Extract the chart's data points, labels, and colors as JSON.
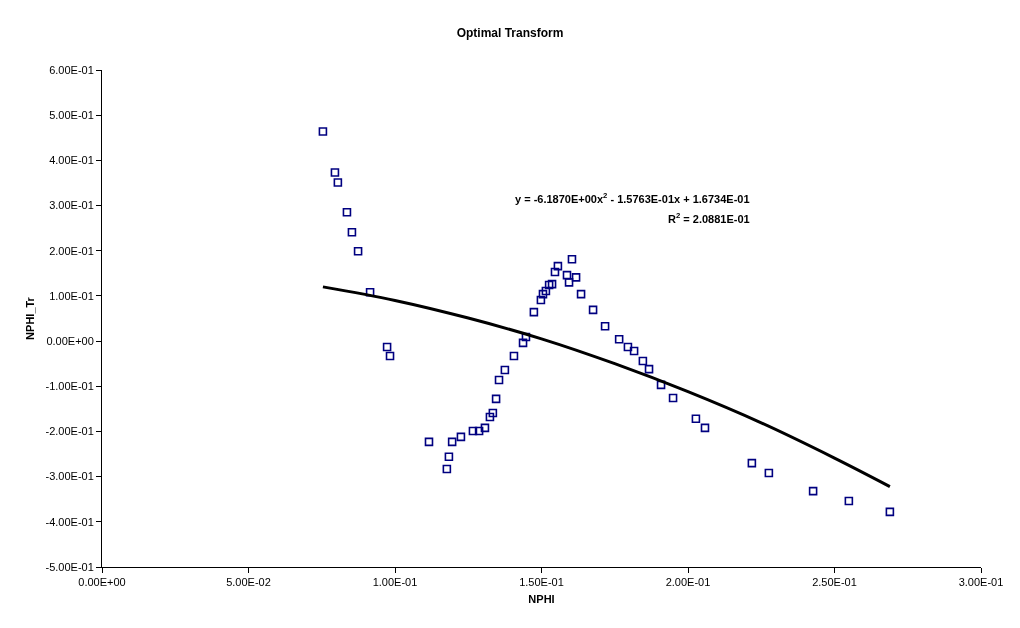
{
  "chart_data": {
    "type": "scatter",
    "title": "Optimal Transform",
    "xlabel": "NPHI",
    "ylabel": "NPHI_Tr",
    "xlim": [
      0,
      0.3
    ],
    "xticks": [
      {
        "value": 0,
        "label": "0.00E+00"
      },
      {
        "value": 0.05,
        "label": "5.00E-02"
      },
      {
        "value": 0.1,
        "label": "1.00E-01"
      },
      {
        "value": 0.15,
        "label": "1.50E-01"
      },
      {
        "value": 0.2,
        "label": "2.00E-01"
      },
      {
        "value": 0.25,
        "label": "2.50E-01"
      },
      {
        "value": 0.3,
        "label": "3.00E-01"
      }
    ],
    "ylim": [
      -0.5,
      0.6
    ],
    "yticks": [
      {
        "value": -0.5,
        "label": "-5.00E-01"
      },
      {
        "value": -0.4,
        "label": "-4.00E-01"
      },
      {
        "value": -0.3,
        "label": "-3.00E-01"
      },
      {
        "value": -0.2,
        "label": "-2.00E-01"
      },
      {
        "value": -0.1,
        "label": "-1.00E-01"
      },
      {
        "value": 0,
        "label": "0.00E+00"
      },
      {
        "value": 0.1,
        "label": "1.00E-01"
      },
      {
        "value": 0.2,
        "label": "2.00E-01"
      },
      {
        "value": 0.3,
        "label": "3.00E-01"
      },
      {
        "value": 0.4,
        "label": "4.00E-01"
      },
      {
        "value": 0.5,
        "label": "5.00E-01"
      },
      {
        "value": 0.6,
        "label": "6.00E-01"
      }
    ],
    "grid": false,
    "marker": "square",
    "series": [
      {
        "color": "#000080",
        "x": [
          0.0754,
          0.0795,
          0.0805,
          0.0836,
          0.0853,
          0.0874,
          0.0915,
          0.0973,
          0.0983,
          0.1116,
          0.1184,
          0.1177,
          0.1195,
          0.1225,
          0.1266,
          0.1287,
          0.1307,
          0.1324,
          0.1334,
          0.1345,
          0.1355,
          0.1375,
          0.1406,
          0.1437,
          0.1447,
          0.1474,
          0.1498,
          0.1505,
          0.1515,
          0.1526,
          0.1536,
          0.1546,
          0.1556,
          0.1587,
          0.1604,
          0.1618,
          0.1594,
          0.1635,
          0.1676,
          0.1717,
          0.1765,
          0.1795,
          0.1816,
          0.1846,
          0.1867,
          0.1908,
          0.1949,
          0.2027,
          0.2058,
          0.2218,
          0.2276,
          0.2427,
          0.2549,
          0.2689
        ],
        "values": [
          0.464,
          0.373,
          0.351,
          0.285,
          0.241,
          0.199,
          0.108,
          -0.013,
          -0.033,
          -0.223,
          -0.256,
          -0.283,
          -0.223,
          -0.212,
          -0.199,
          -0.199,
          -0.192,
          -0.168,
          -0.159,
          -0.128,
          -0.086,
          -0.064,
          -0.033,
          -0.004,
          0.009,
          0.064,
          0.091,
          0.104,
          0.111,
          0.124,
          0.126,
          0.153,
          0.166,
          0.146,
          0.181,
          0.141,
          0.13,
          0.104,
          0.069,
          0.033,
          0.004,
          -0.013,
          -0.022,
          -0.044,
          -0.062,
          -0.097,
          -0.126,
          -0.172,
          -0.192,
          -0.27,
          -0.292,
          -0.332,
          -0.354,
          -0.378
        ]
      },
      {
        "type": "line",
        "color": "#000000",
        "marker": "none",
        "x": [
          0.0754,
          0.1,
          0.125,
          0.15,
          0.175,
          0.2,
          0.225,
          0.25,
          0.2689
        ],
        "values": [
          0.12,
          0.09,
          0.051,
          0.005,
          -0.05,
          -0.112,
          -0.181,
          -0.259,
          -0.322
        ]
      }
    ],
    "annotations": [
      "y = -6.1870E+00x$^{2}$ - 1.5763E-01x + 1.6734E-01",
      "R$^{2}$ = 2.0881E-01"
    ]
  }
}
